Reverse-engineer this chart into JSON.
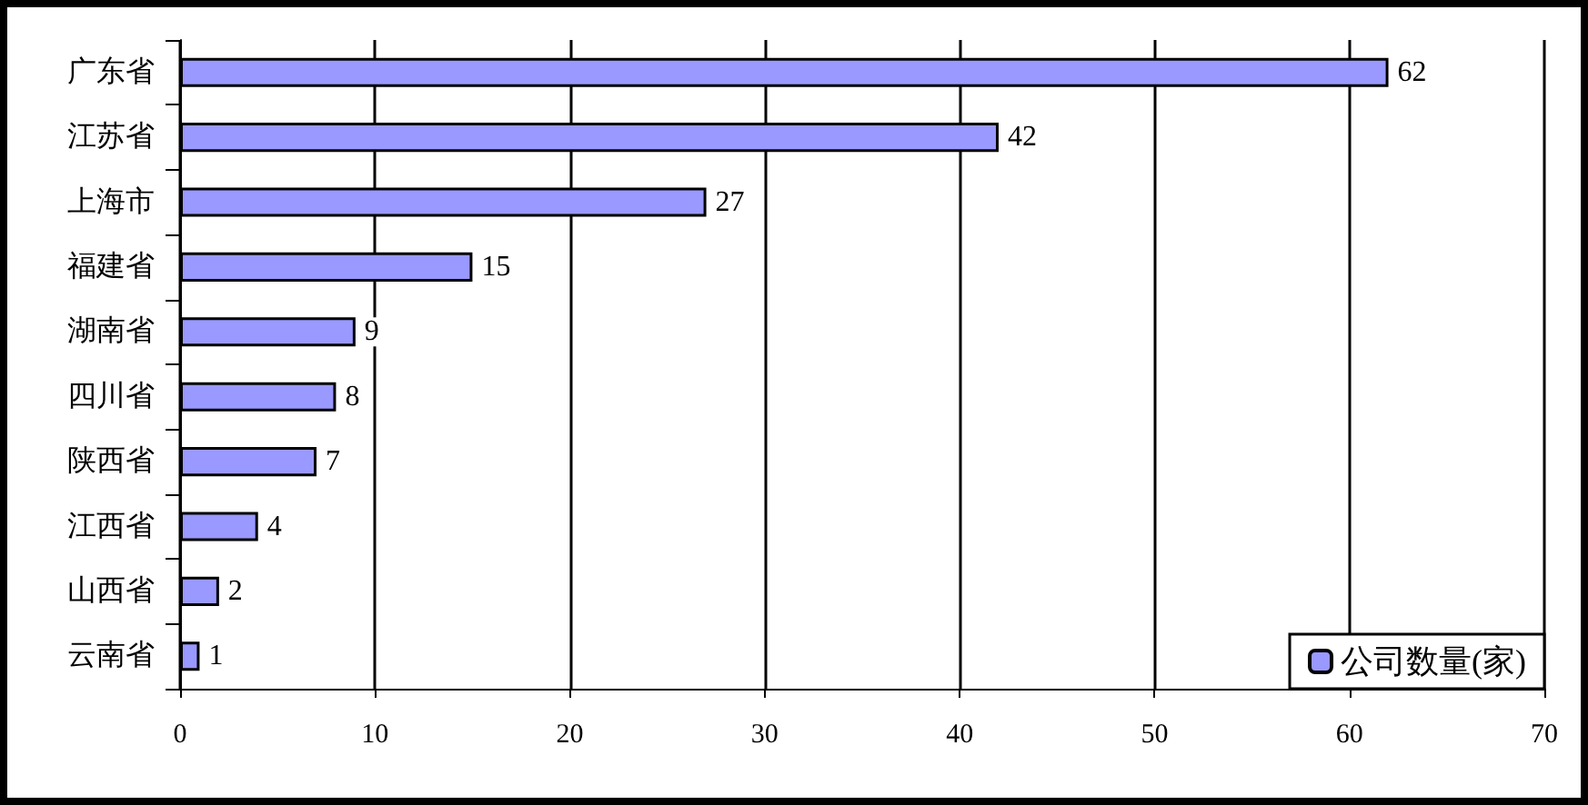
{
  "chart_data": {
    "type": "bar",
    "orientation": "horizontal",
    "categories": [
      "广东省",
      "江苏省",
      "上海市",
      "福建省",
      "湖南省",
      "四川省",
      "陕西省",
      "江西省",
      "山西省",
      "云南省"
    ],
    "series": [
      {
        "name": "公司数量(家)",
        "color": "#9999ff",
        "values": [
          62,
          42,
          27,
          15,
          9,
          8,
          7,
          4,
          2,
          1
        ]
      }
    ],
    "xlim": [
      0,
      70
    ],
    "xticks": [
      0,
      10,
      20,
      30,
      40,
      50,
      60,
      70
    ],
    "grid": "x",
    "legend": "bottom right",
    "data_labels": true
  }
}
